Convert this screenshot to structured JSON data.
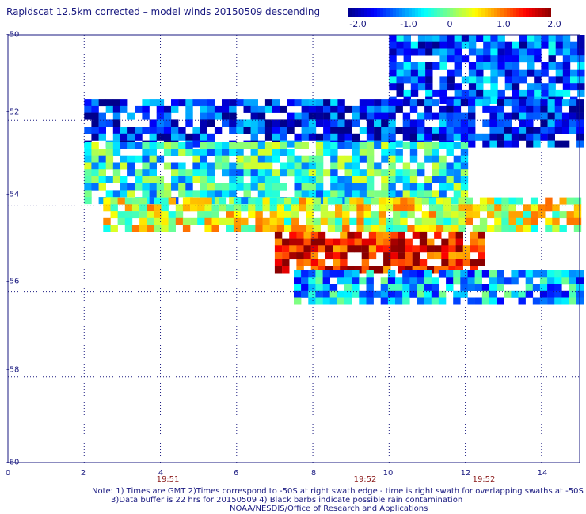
{
  "title": "Rapidscat 12.5km corrected – model winds 20150509 descending",
  "colorbar": {
    "tick_labels": [
      "-2.0",
      "-1.0",
      "0",
      "1.0",
      "2.0"
    ],
    "min": -2.0,
    "max": 2.0,
    "colors": [
      "#00008b",
      "#0000ff",
      "#0080ff",
      "#00ffff",
      "#80ff80",
      "#ffff00",
      "#ff8000",
      "#ff0000",
      "#8b0000"
    ]
  },
  "lat_labels": [
    "-50",
    "-52",
    "-54",
    "-56",
    "-58",
    "-60"
  ],
  "lon_labels": [
    "0",
    "2",
    "4",
    "6",
    "8",
    "10",
    "12",
    "14"
  ],
  "time_labels": [
    "19:51",
    "19:52",
    "19:52"
  ],
  "notes": {
    "line1": "Note: 1) Times are GMT 2)Times correspond to -50S at right swath edge - time is right swath for overlapping swaths at -50S",
    "line2": "3)Data buffer is 22 hrs for 20150509 4) Black barbs indicate possible rain contamination",
    "line3": "NOAA/NESDIS/Office of Research and Applications"
  },
  "chart_data": {
    "type": "heatmap",
    "title": "Rapidscat 12.5km corrected – model winds 20150509 descending",
    "x_range": [
      0,
      15
    ],
    "y_range": [
      -60,
      -50
    ],
    "value_range": [
      -2.0,
      2.0
    ],
    "grid": true,
    "region_bands": [
      {
        "lat": [
          -50.0,
          -51.5
        ],
        "lon": [
          10,
          15
        ],
        "mean_value": -1.2
      },
      {
        "lat": [
          -51.5,
          -52.5
        ],
        "lon": [
          2,
          15
        ],
        "mean_value": -1.4
      },
      {
        "lat": [
          -52.5,
          -53.8
        ],
        "lon": [
          2,
          12
        ],
        "mean_value": -0.4
      },
      {
        "lat": [
          -53.8,
          -54.6
        ],
        "lon": [
          2.5,
          15
        ],
        "mean_value": 0.3
      },
      {
        "lat": [
          -54.6,
          -55.5
        ],
        "lon": [
          7,
          12.5
        ],
        "mean_value": 1.6
      },
      {
        "lat": [
          -55.5,
          -56.2
        ],
        "lon": [
          7.5,
          15
        ],
        "mean_value": -0.8
      }
    ]
  }
}
